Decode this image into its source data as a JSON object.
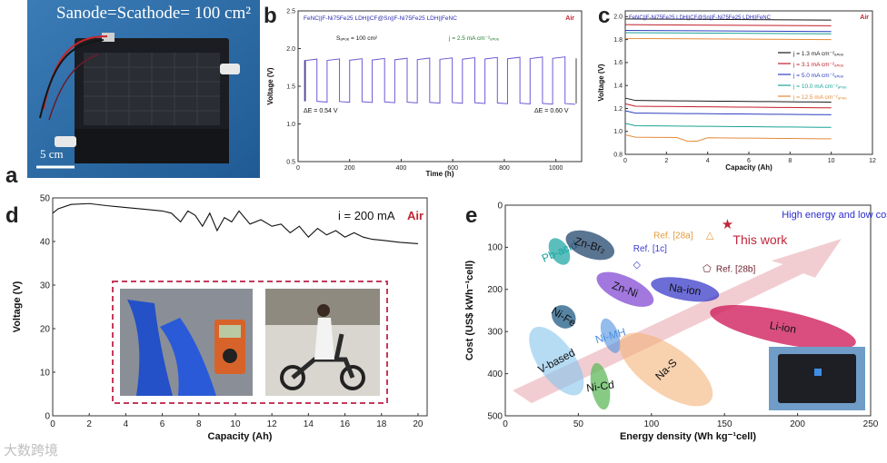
{
  "panel_labels": {
    "a": "a",
    "b": "b",
    "c": "c",
    "d": "d",
    "e": "e"
  },
  "panel_a": {
    "area_label": "Sₐₙₒₑ=Sᴄₐₜₕₒₑ= 100 cm²",
    "area_text": "Sanode=Scathode= 100 cm²",
    "scale_bar": "5 cm",
    "colors": {
      "bg": "#2f6fa8",
      "device": "#1b1d22"
    }
  },
  "chart_data": [
    {
      "id": "b",
      "type": "line",
      "title": "FeNC||F-Ni₇₅Fe₂₅ LDH||CF@Sn||F-Ni₇₅Fe₂₅ LDH||FeNC",
      "title_text": "FeNC||F-Ni75Fe25 LDH||CF@Sn||F-Ni75Fe25 LDH||FeNC",
      "atmosphere": "Air",
      "annotations": [
        "Sₐₙₒₑ = 100 cm²",
        "j = 2.5 mA cm⁻²ₐₙₒₑ",
        "ΔE = 0.54 V",
        "ΔE = 0.60 V"
      ],
      "xlabel": "Time (h)",
      "ylabel": "Voltage (V)",
      "xlim": [
        0,
        1100
      ],
      "ylim": [
        0.5,
        2.5
      ],
      "xticks": [
        0,
        200,
        400,
        600,
        800,
        1000
      ],
      "yticks": [
        0.5,
        1.0,
        1.5,
        2.0,
        2.5
      ],
      "cycles": 12,
      "charge_v": [
        1.84,
        1.87
      ],
      "discharge_v": [
        1.3,
        1.27
      ],
      "color": "#6b5bd6"
    },
    {
      "id": "c",
      "type": "line",
      "title_text": "FeNC||F-Ni75Fe25 LDH||CF@Sn||F-Ni75Fe25 LDH||FeNC",
      "atmosphere": "Air",
      "xlabel": "Capacity (Ah)",
      "ylabel": "Voltage (V)",
      "xlim": [
        0,
        12
      ],
      "ylim": [
        0.8,
        2.05
      ],
      "xticks": [
        0,
        2,
        4,
        6,
        8,
        10,
        12
      ],
      "yticks": [
        0.8,
        1.0,
        1.2,
        1.4,
        1.6,
        1.8,
        2.0
      ],
      "series": [
        {
          "name": "j = 1.3 mA cm⁻²ₐₙₒₑ",
          "charge": 1.98,
          "discharge": 1.27,
          "color": "#1a1a1a"
        },
        {
          "name": "j = 3.1 mA cm⁻²ₐₙₒₑ",
          "charge": 1.93,
          "discharge": 1.22,
          "color": "#c21d2a"
        },
        {
          "name": "j = 5.0 mA cm⁻²ₐₙₒₑ",
          "charge": 1.88,
          "discharge": 1.16,
          "color": "#2e3fbf"
        },
        {
          "name": "j = 10.0 mA cm⁻²ₐₙₒₑ",
          "charge": 1.86,
          "discharge": 1.05,
          "color": "#1aa396"
        },
        {
          "name": "j = 12.5 mA cm⁻²ₐₙₒₑ",
          "charge": 1.81,
          "discharge": 0.95,
          "color": "#e58b3a"
        }
      ]
    },
    {
      "id": "d",
      "type": "line",
      "annotation": "i = 200 mA",
      "atmosphere": "Air",
      "xlabel": "Capacity (Ah)",
      "ylabel": "Voltage (V)",
      "xlim": [
        0,
        20.5
      ],
      "ylim": [
        0,
        50
      ],
      "xticks": [
        0,
        2,
        4,
        6,
        8,
        10,
        12,
        14,
        16,
        18,
        20
      ],
      "yticks": [
        0,
        10,
        20,
        30,
        40,
        50
      ],
      "x": [
        0,
        0.3,
        1,
        2,
        3,
        4,
        5,
        6,
        6.5,
        7,
        7.4,
        7.8,
        8.2,
        8.6,
        9,
        9.4,
        9.8,
        10.2,
        10.8,
        11.4,
        12,
        12.5,
        13,
        13.5,
        14,
        14.5,
        15,
        15.5,
        16,
        16.5,
        17,
        17.5,
        18,
        19,
        20
      ],
      "y": [
        46.5,
        47.5,
        48.5,
        48.7,
        48.2,
        47.8,
        47.4,
        47.0,
        46.5,
        44.5,
        47.0,
        46.0,
        43.5,
        46.5,
        42.5,
        45.5,
        44.5,
        47.0,
        44.0,
        45.0,
        43.5,
        44.0,
        42.0,
        43.5,
        41.0,
        43.0,
        41.5,
        42.5,
        41.0,
        42.0,
        41.0,
        40.5,
        40.3,
        39.8,
        39.5
      ],
      "color": "#111111"
    },
    {
      "id": "e",
      "type": "scatter",
      "xlabel": "Energy density (Wh kg⁻¹cell)",
      "ylabel": "Cost (US$ kWh⁻¹cell)",
      "xlim": [
        0,
        250
      ],
      "ylim": [
        500,
        0
      ],
      "xticks": [
        0,
        50,
        100,
        150,
        200,
        250
      ],
      "yticks": [
        0,
        100,
        200,
        300,
        400,
        500
      ],
      "arrow_label": "High energy and low cost",
      "regions": [
        {
          "name": "Pb-acid",
          "x": 37,
          "y": 110,
          "color": "#16a3a0"
        },
        {
          "name": "Zn-Br₂",
          "x": 58,
          "y": 95,
          "color": "#23476e"
        },
        {
          "name": "Zn-Ni",
          "x": 82,
          "y": 200,
          "color": "#7b3fd1"
        },
        {
          "name": "Na-ion",
          "x": 123,
          "y": 200,
          "color": "#2e2fc4"
        },
        {
          "name": "Li-ion",
          "x": 190,
          "y": 290,
          "color": "#d0225e"
        },
        {
          "name": "Ni-Fe",
          "x": 40,
          "y": 265,
          "color": "#1f5b84"
        },
        {
          "name": "Ni-MH",
          "x": 72,
          "y": 310,
          "color": "#4d8fe0"
        },
        {
          "name": "V-based",
          "x": 35,
          "y": 370,
          "color": "#86c5ec"
        },
        {
          "name": "Ni-Cd",
          "x": 65,
          "y": 430,
          "color": "#5fb85b"
        },
        {
          "name": "Na-S",
          "x": 110,
          "y": 390,
          "color": "#f3b27a"
        }
      ],
      "points": [
        {
          "name": "This work",
          "x": 152,
          "y": 45,
          "color": "#c0263a",
          "marker": "star"
        },
        {
          "name": "Ref. [28a]",
          "x": 140,
          "y": 70,
          "color": "#e39b3b",
          "marker": "triangle"
        },
        {
          "name": "Ref. [1c]",
          "x": 90,
          "y": 140,
          "color": "#3b3bd6",
          "marker": "diamond"
        },
        {
          "name": "Ref. [28b]",
          "x": 138,
          "y": 150,
          "color": "#6b1c2a",
          "marker": "pentagon"
        }
      ]
    }
  ],
  "watermark": "大数跨境"
}
